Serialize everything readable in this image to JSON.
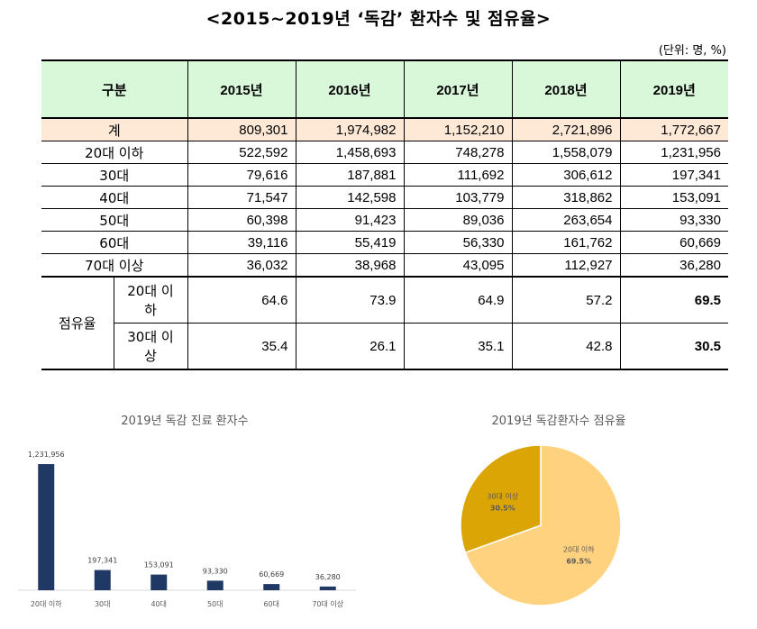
{
  "title": "<2015~2019년 ‘독감’ 환자수 및 점유율>",
  "unit": "(단위: 명, %)",
  "table": {
    "header": [
      "구분",
      "2015년",
      "2016년",
      "2017년",
      "2018년",
      "2019년"
    ],
    "rows": [
      {
        "label": "계",
        "values": [
          "809,301",
          "1,974,982",
          "1,152,210",
          "2,721,896",
          "1,772,667"
        ]
      },
      {
        "label": "20대 이하",
        "values": [
          "522,592",
          "1,458,693",
          "748,278",
          "1,558,079",
          "1,231,956"
        ]
      },
      {
        "label": "30대",
        "values": [
          "79,616",
          "187,881",
          "111,692",
          "306,612",
          "197,341"
        ]
      },
      {
        "label": "40대",
        "values": [
          "71,547",
          "142,598",
          "103,779",
          "318,862",
          "153,091"
        ]
      },
      {
        "label": "50대",
        "values": [
          "60,398",
          "91,423",
          "89,036",
          "263,654",
          "93,330"
        ]
      },
      {
        "label": "60대",
        "values": [
          "39,116",
          "55,419",
          "56,330",
          "161,762",
          "60,669"
        ]
      },
      {
        "label": "70대 이상",
        "values": [
          "36,032",
          "38,968",
          "43,095",
          "112,927",
          "36,280"
        ]
      }
    ],
    "share": {
      "group_label": "점유율",
      "rows": [
        {
          "label": "20대 이하",
          "values": [
            "64.6",
            "73.9",
            "64.9",
            "57.2",
            "69.5"
          ]
        },
        {
          "label": "30대 이상",
          "values": [
            "35.4",
            "26.1",
            "35.1",
            "42.8",
            "30.5"
          ]
        }
      ]
    }
  },
  "chart_data": [
    {
      "type": "bar",
      "title": "2019년 독감 진료 환자수",
      "categories": [
        "20대 이하",
        "30대",
        "40대",
        "50대",
        "60대",
        "70대 이상"
      ],
      "values": [
        1231956,
        197341,
        153091,
        93330,
        60669,
        36280
      ],
      "data_labels": [
        "1,231,956",
        "197,341",
        "153,091",
        "93,330",
        "60,669",
        "36,280"
      ],
      "ylim": [
        0,
        1231956
      ],
      "color": "#203864",
      "grid": false
    },
    {
      "type": "pie",
      "title": "2019년 독감환자수 점유율",
      "slices": [
        {
          "label": "20대 이하",
          "value": 69.5,
          "value_label": "69.5%",
          "color": "#ffd27f"
        },
        {
          "label": "30대 이상",
          "value": 30.5,
          "value_label": "30.5%",
          "color": "#dca506"
        }
      ]
    }
  ]
}
